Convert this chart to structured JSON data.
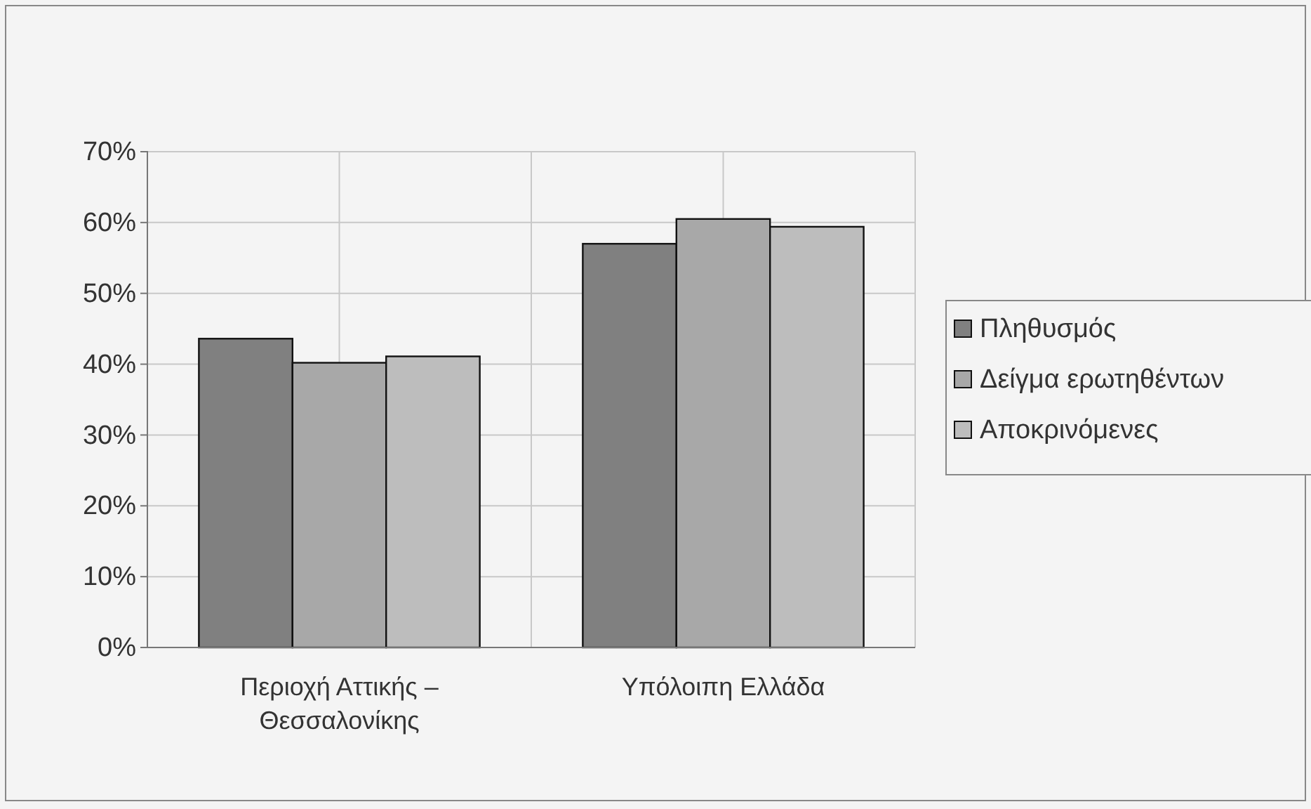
{
  "chart_data": {
    "type": "bar",
    "categories": [
      "Περιοχή Αττικής – Θεσσαλονίκης",
      "Υπόλοιπη Ελλάδα"
    ],
    "series": [
      {
        "name": "Πληθυσμός",
        "color": "#808080",
        "values": [
          43.6,
          57.0
        ]
      },
      {
        "name": "Δείγμα ερωτηθέντων",
        "color": "#a8a8a8",
        "values": [
          40.2,
          60.5
        ]
      },
      {
        "name": "Αποκρινόμενες",
        "color": "#bdbdbd",
        "values": [
          41.1,
          59.4
        ]
      }
    ],
    "ylim": [
      0,
      70
    ],
    "yticks": [
      {
        "value": 0,
        "label": "0%"
      },
      {
        "value": 10,
        "label": "10%"
      },
      {
        "value": 20,
        "label": "20%"
      },
      {
        "value": 30,
        "label": "30%"
      },
      {
        "value": 40,
        "label": "40%"
      },
      {
        "value": 50,
        "label": "50%"
      },
      {
        "value": 60,
        "label": "60%"
      },
      {
        "value": 70,
        "label": "70%"
      }
    ],
    "grid": true,
    "legend": "right"
  }
}
